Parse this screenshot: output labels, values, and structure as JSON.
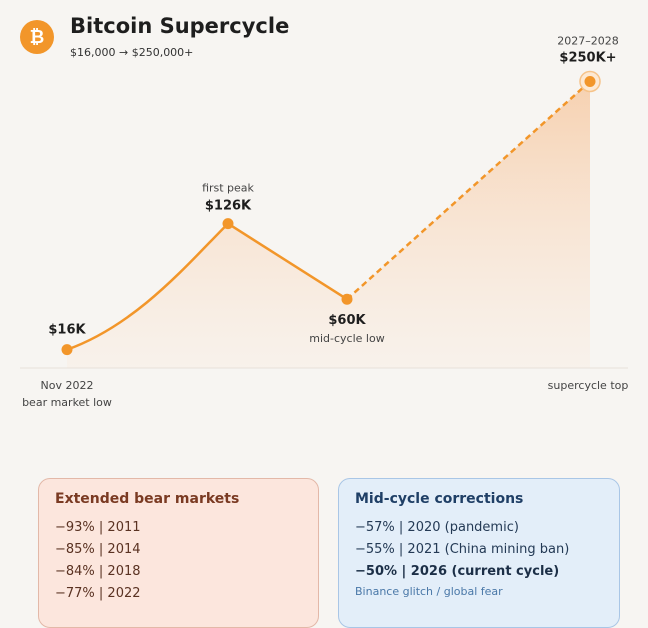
{
  "header": {
    "title": "Bitcoin Supercycle",
    "subtitle": "$16,000 → $250,000+",
    "logo_symbol": "₿",
    "logo_icon": "bitcoin-icon"
  },
  "colors": {
    "accent": "#f2962a",
    "bear_bg": "#fce6dd",
    "mid_bg": "#e3eef9"
  },
  "chart_data": {
    "type": "line",
    "title": "Bitcoin Supercycle",
    "y_unit": "USD (thousands)",
    "points": [
      {
        "value": 16,
        "value_label": "$16K",
        "label": "",
        "x_label": "Nov 2022",
        "x_sublabel": "bear market low",
        "style": "solid"
      },
      {
        "value": 126,
        "value_label": "$126K",
        "label": "first peak",
        "x_label": "",
        "x_sublabel": "",
        "style": "solid"
      },
      {
        "value": 60,
        "value_label": "$60K",
        "label": "mid-cycle low",
        "x_label": "",
        "x_sublabel": "",
        "style": "solid"
      },
      {
        "value": 250,
        "value_label": "$250K+",
        "label": "2027–2028",
        "x_label": "supercycle top",
        "x_sublabel": "",
        "style": "dashed"
      }
    ],
    "legend": "none",
    "grid": false
  },
  "bear_markets": {
    "title": "Extended bear markets",
    "items": [
      "−93% | 2011",
      "−85% | 2014",
      "−84% | 2018",
      "−77% | 2022"
    ]
  },
  "mid_cycle": {
    "title": "Mid-cycle corrections",
    "items": [
      {
        "text": "−57% | 2020 (pandemic)",
        "strong": false
      },
      {
        "text": "−55% | 2021 (China mining ban)",
        "strong": false
      },
      {
        "text": "−50% | 2026 (current cycle)",
        "strong": true
      }
    ],
    "note": "Binance glitch / global fear"
  }
}
